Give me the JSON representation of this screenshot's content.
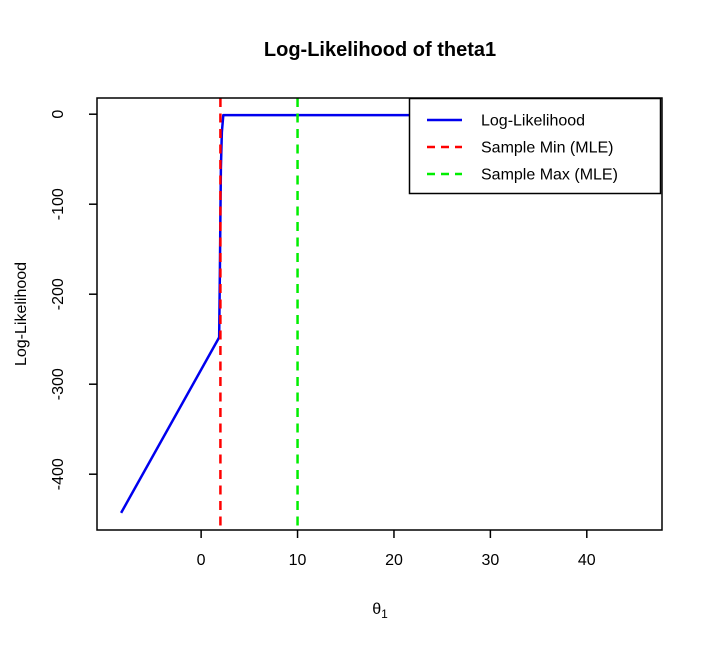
{
  "title": "Log-Likelihood of theta1",
  "axes": {
    "xlabel": "θ",
    "xlabel_sub": "1",
    "ylabel": "Log-Likelihood"
  },
  "legend": {
    "entries": [
      {
        "label": "Log-Likelihood",
        "color": "#0000ee",
        "dash": "solid"
      },
      {
        "label": "Sample Min (MLE)",
        "color": "#ff0000",
        "dash": "dashed"
      },
      {
        "label": "Sample Max (MLE)",
        "color": "#00ee00",
        "dash": "dashed"
      }
    ]
  },
  "colors": {
    "axis": "#000000",
    "background": "#ffffff",
    "loglik_line": "#0000ee",
    "sample_min_line": "#ff0000",
    "sample_max_line": "#00ee00"
  },
  "chart_data": {
    "type": "line",
    "title": "Log-Likelihood of theta1",
    "xlabel": "theta1",
    "ylabel": "Log-Likelihood",
    "xlim": [
      -10.8,
      47.8
    ],
    "ylim": [
      -462,
      18
    ],
    "xticks": [
      0,
      10,
      20,
      30,
      40
    ],
    "yticks": [
      0,
      -100,
      -200,
      -300,
      -400
    ],
    "grid": false,
    "legend_position": "topright",
    "series": [
      {
        "name": "Log-Likelihood",
        "color": "#0000ee",
        "linestyle": "solid",
        "points": [
          [
            -8.3,
            -443
          ],
          [
            1.87,
            -248
          ],
          [
            1.95,
            -170
          ],
          [
            2.0,
            -110
          ],
          [
            2.05,
            -60
          ],
          [
            2.15,
            -20
          ],
          [
            2.3,
            -1
          ],
          [
            21.6,
            -1
          ]
        ]
      },
      {
        "name": "Sample Min (MLE)",
        "color": "#ff0000",
        "linestyle": "dashed",
        "vline_x": 2
      },
      {
        "name": "Sample Max (MLE)",
        "color": "#00ee00",
        "linestyle": "dashed",
        "vline_x": 10
      }
    ]
  }
}
